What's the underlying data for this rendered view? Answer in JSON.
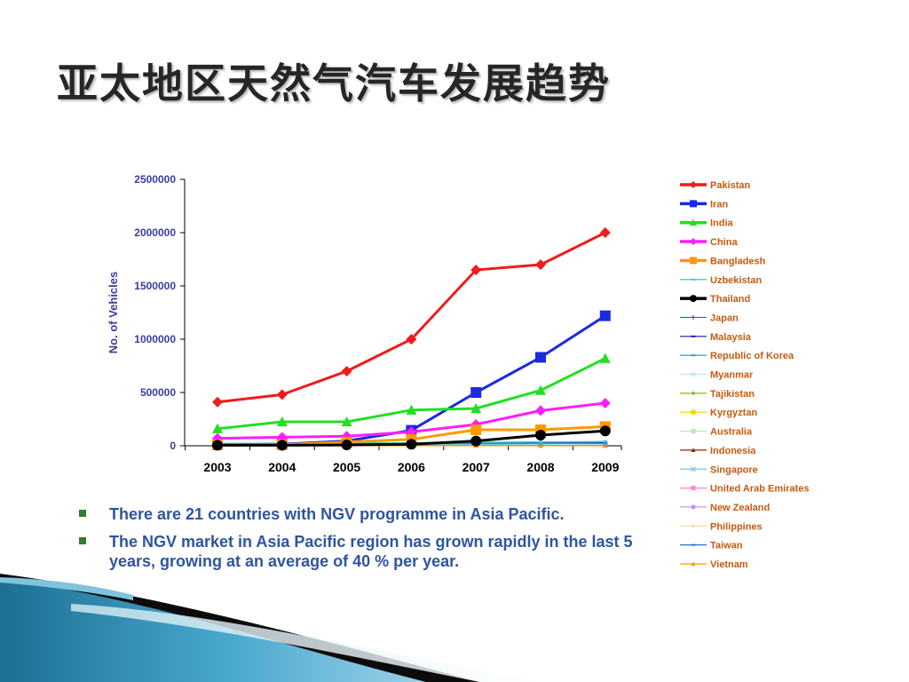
{
  "title": "亚太地区天然气汽车发展趋势",
  "bullets": [
    "There are 21 countries with NGV programme in Asia Pacific.",
    "The NGV market in Asia Pacific region has grown rapidly in the last 5  years, growing at an average of 40 % per year."
  ],
  "chart_data": {
    "type": "line",
    "x": [
      "2003",
      "2004",
      "2005",
      "2006",
      "2007",
      "2008",
      "2009"
    ],
    "ylabel": "No. of Vehicles",
    "xlabel": "",
    "ylim": [
      0,
      2500000
    ],
    "yticks": [
      "0",
      "500000",
      "1000000",
      "1500000",
      "2000000",
      "2500000"
    ],
    "grid": false,
    "legend_position": "right",
    "series": [
      {
        "name": "Pakistan",
        "color": "#ee1c1c",
        "marker": "diamond",
        "width": 3,
        "values": [
          410000,
          480000,
          700000,
          1000000,
          1650000,
          1700000,
          2000000
        ]
      },
      {
        "name": "Iran",
        "color": "#1a2be0",
        "marker": "square",
        "width": 3,
        "values": [
          10000,
          15000,
          45000,
          145000,
          500000,
          830000,
          1220000
        ]
      },
      {
        "name": "India",
        "color": "#21e021",
        "marker": "triangle",
        "width": 3,
        "values": [
          160000,
          225000,
          225000,
          335000,
          350000,
          520000,
          820000
        ]
      },
      {
        "name": "China",
        "color": "#ff1cff",
        "marker": "diamond",
        "width": 3,
        "values": [
          70000,
          80000,
          90000,
          130000,
          200000,
          330000,
          400000
        ]
      },
      {
        "name": "Bangladesh",
        "color": "#ff9900",
        "marker": "square",
        "width": 3,
        "values": [
          10000,
          10000,
          35000,
          60000,
          150000,
          150000,
          180000
        ]
      },
      {
        "name": "Uzbekistan",
        "color": "#33cccc",
        "marker": "line",
        "width": 1.5,
        "values": [
          20000,
          22000,
          25000,
          28000,
          32000,
          35000,
          40000
        ]
      },
      {
        "name": "Thailand",
        "color": "#000000",
        "marker": "circle",
        "width": 3,
        "values": [
          5000,
          5000,
          8000,
          15000,
          45000,
          100000,
          140000
        ]
      },
      {
        "name": "Japan",
        "color": "#2a6f8a",
        "marker": "plus",
        "width": 1.2,
        "values": [
          22000,
          24000,
          26000,
          28000,
          30000,
          32000,
          33000
        ]
      },
      {
        "name": "Malaysia",
        "color": "#1d1db0",
        "marker": "dash",
        "width": 1.2,
        "values": [
          5000,
          7000,
          10000,
          15000,
          20000,
          25000,
          30000
        ]
      },
      {
        "name": "Republic of Korea",
        "color": "#1aa6e0",
        "marker": "dash",
        "width": 1.2,
        "values": [
          10000,
          12000,
          14000,
          16000,
          18000,
          20000,
          22000
        ]
      },
      {
        "name": "Myanmar",
        "color": "#b5e8f5",
        "marker": "asterisk",
        "width": 1,
        "values": [
          500,
          800,
          1000,
          5000,
          10000,
          15000,
          16000
        ]
      },
      {
        "name": "Tajikistan",
        "color": "#8cba1a",
        "marker": "diamond",
        "width": 1,
        "values": [
          500,
          500,
          500,
          500,
          500,
          500,
          500
        ]
      },
      {
        "name": "Kyrgyztan",
        "color": "#ffcc00",
        "marker": "square",
        "width": 1,
        "values": [
          1000,
          1000,
          1000,
          1000,
          1000,
          1000,
          1000
        ]
      },
      {
        "name": "Australia",
        "color": "#aaf0aa",
        "marker": "square",
        "width": 1,
        "values": [
          2000,
          2000,
          2000,
          2000,
          2500,
          2500,
          2500
        ]
      },
      {
        "name": "Indonesia",
        "color": "#8a2a0a",
        "marker": "triangle",
        "width": 1,
        "values": [
          2000,
          2000,
          3000,
          3000,
          3000,
          4000,
          5000
        ]
      },
      {
        "name": "Singapore",
        "color": "#88bbee",
        "marker": "cross",
        "width": 1,
        "values": [
          500,
          800,
          1000,
          1500,
          2000,
          2500,
          3000
        ]
      },
      {
        "name": "United Arab Emirates",
        "color": "#ff88cc",
        "marker": "square",
        "width": 1,
        "values": [
          100,
          200,
          300,
          500,
          800,
          1000,
          1200
        ]
      },
      {
        "name": "New Zealand",
        "color": "#cc88ff",
        "marker": "circle",
        "width": 1,
        "values": [
          300,
          300,
          300,
          300,
          300,
          300,
          300
        ]
      },
      {
        "name": "Philippines",
        "color": "#f5d4a0",
        "marker": "plus",
        "width": 1,
        "values": [
          0,
          0,
          0,
          50,
          100,
          200,
          300
        ]
      },
      {
        "name": "Taiwan",
        "color": "#2a6fd0",
        "marker": "dash",
        "width": 1,
        "values": [
          100,
          100,
          200,
          300,
          400,
          500,
          600
        ]
      },
      {
        "name": "Vietnam",
        "color": "#ff9900",
        "marker": "triangle",
        "width": 1,
        "values": [
          0,
          0,
          0,
          0,
          100,
          200,
          300
        ]
      }
    ]
  }
}
